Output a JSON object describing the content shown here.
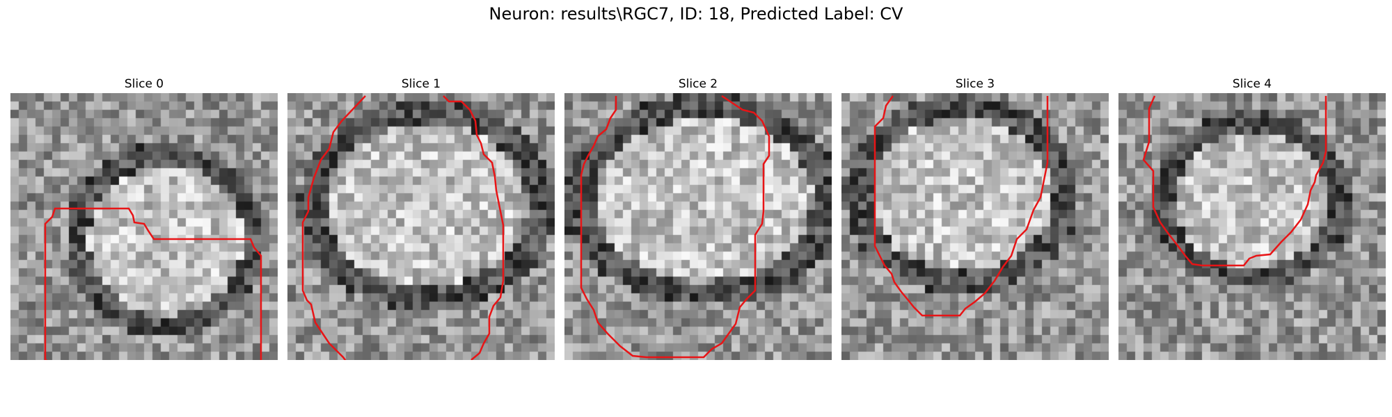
{
  "figure": {
    "title": "Neuron: results\\RGC7, ID: 18, Predicted Label: CV"
  },
  "colors": {
    "contour": "#e81416"
  },
  "panels": [
    {
      "title": "Slice 0",
      "seed": 11,
      "dark_ring": [
        0.58,
        0.55,
        0.34,
        0.33
      ]
    },
    {
      "title": "Slice 1",
      "seed": 23,
      "dark_ring": [
        0.52,
        0.42,
        0.44,
        0.36
      ]
    },
    {
      "title": "Slice 2",
      "seed": 37,
      "dark_ring": [
        0.52,
        0.4,
        0.48,
        0.36
      ]
    },
    {
      "title": "Slice 3",
      "seed": 41,
      "dark_ring": [
        0.45,
        0.38,
        0.4,
        0.34
      ]
    },
    {
      "title": "Slice 4",
      "seed": 59,
      "dark_ring": [
        0.5,
        0.4,
        0.34,
        0.3
      ]
    }
  ]
}
